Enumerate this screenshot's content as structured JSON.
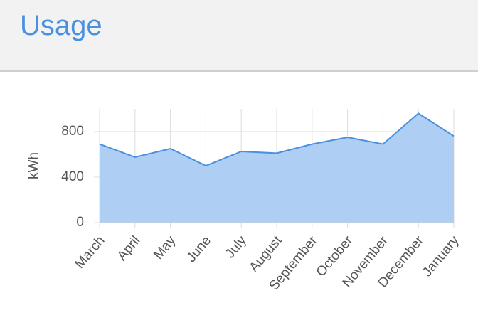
{
  "header": {
    "title": "Usage"
  },
  "chart_data": {
    "type": "area",
    "y_label": "kWh",
    "categories": [
      "March",
      "April",
      "May",
      "June",
      "July",
      "August",
      "September",
      "October",
      "November",
      "December",
      "January"
    ],
    "values": [
      690,
      575,
      650,
      500,
      625,
      610,
      690,
      750,
      690,
      960,
      760
    ],
    "color": "#4a90e2",
    "fill": "#aaccf2",
    "ylim": [
      0,
      1000
    ],
    "yticks": [
      0,
      400,
      800
    ],
    "grid": true
  }
}
